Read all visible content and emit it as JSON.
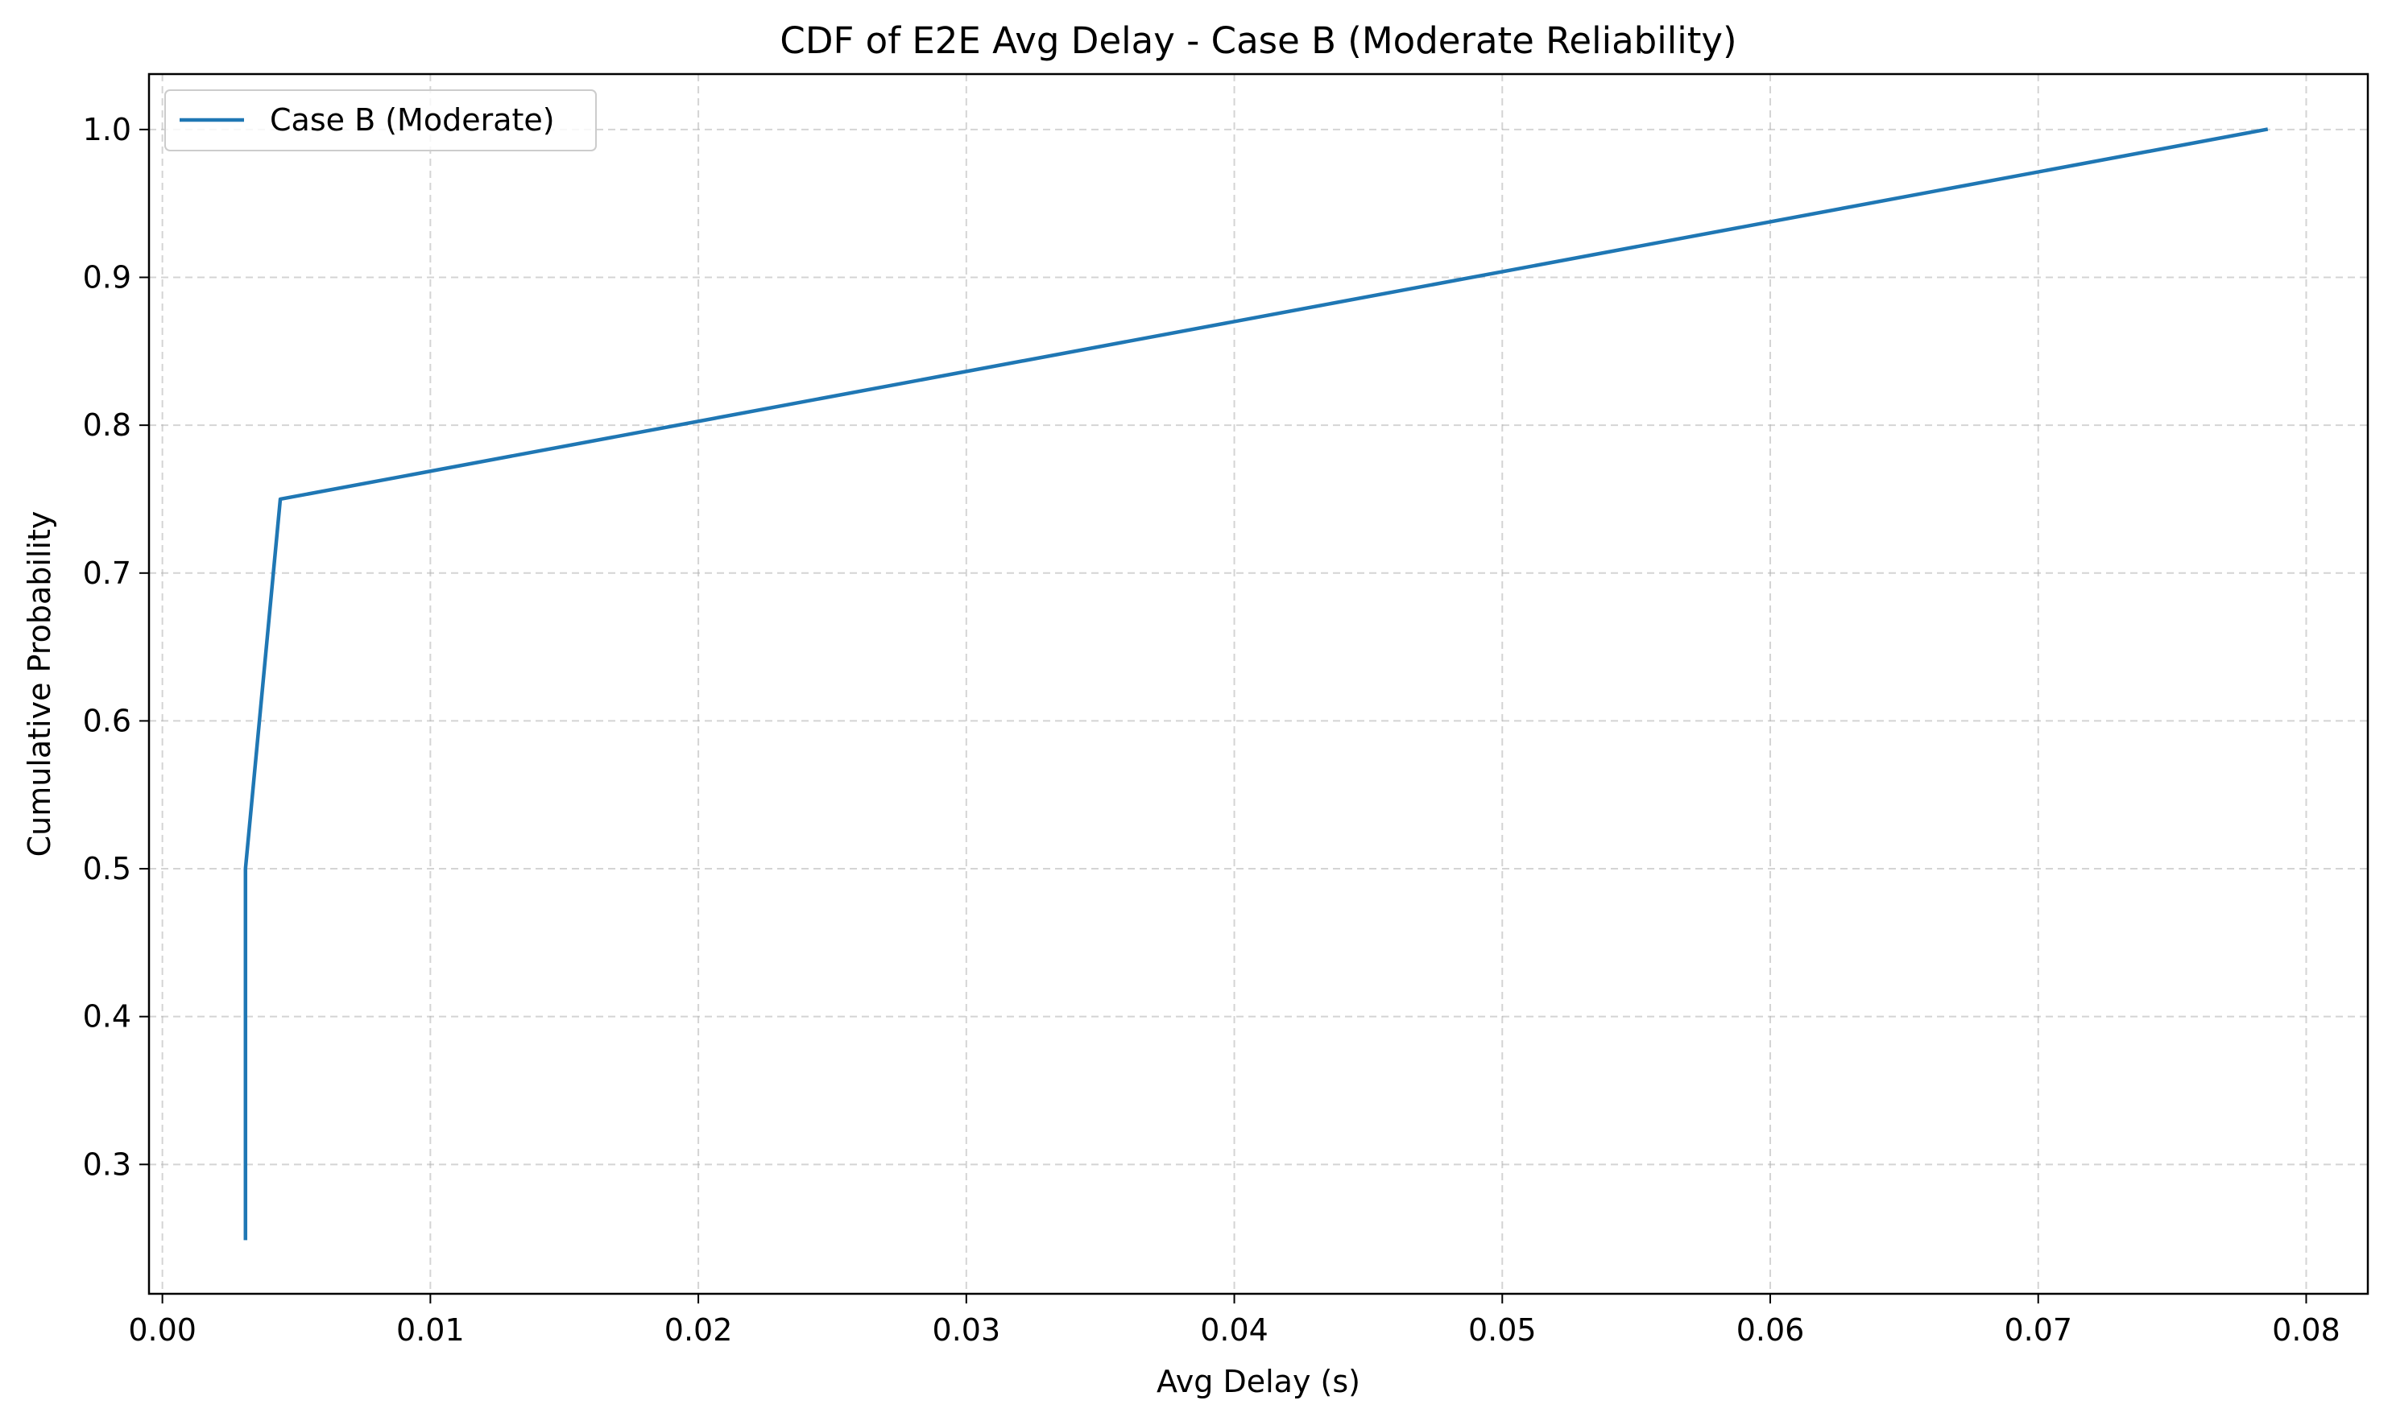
{
  "chart_data": {
    "type": "line",
    "title": "CDF of E2E Avg Delay - Case B (Moderate Reliability)",
    "xlabel": "Avg Delay (s)",
    "ylabel": "Cumulative Probability",
    "xlim": [
      -0.0005,
      0.0823
    ],
    "ylim": [
      0.2125,
      1.0375
    ],
    "x_ticks": [
      0.0,
      0.01,
      0.02,
      0.03,
      0.04,
      0.05,
      0.06,
      0.07,
      0.08
    ],
    "x_tick_labels": [
      "0.00",
      "0.01",
      "0.02",
      "0.03",
      "0.04",
      "0.05",
      "0.06",
      "0.07",
      "0.08"
    ],
    "y_ticks": [
      0.3,
      0.4,
      0.5,
      0.6,
      0.7,
      0.8,
      0.9,
      1.0
    ],
    "y_tick_labels": [
      "0.3",
      "0.4",
      "0.5",
      "0.6",
      "0.7",
      "0.8",
      "0.9",
      "1.0"
    ],
    "grid": true,
    "legend_position": "top-left",
    "series": [
      {
        "name": "Case B (Moderate)",
        "color": "#1f77b4",
        "x": [
          0.0031,
          0.0031,
          0.0044,
          0.0785
        ],
        "y": [
          0.25,
          0.5,
          0.75,
          1.0
        ]
      }
    ]
  }
}
